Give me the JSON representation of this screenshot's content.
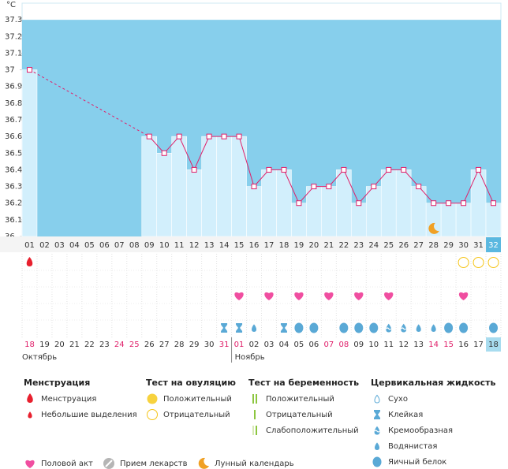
{
  "chart_data": {
    "type": "line",
    "y_unit": "°C",
    "categories": [
      "01",
      "02",
      "03",
      "04",
      "05",
      "06",
      "07",
      "08",
      "09",
      "10",
      "11",
      "12",
      "13",
      "14",
      "15",
      "16",
      "17",
      "18",
      "19",
      "20",
      "21",
      "22",
      "23",
      "24",
      "25",
      "26",
      "27",
      "28",
      "29",
      "30",
      "31",
      "32"
    ],
    "values": [
      37,
      null,
      null,
      null,
      null,
      null,
      null,
      null,
      36.6,
      36.5,
      36.6,
      36.4,
      36.6,
      36.6,
      36.6,
      36.3,
      36.4,
      36.4,
      36.2,
      36.3,
      36.3,
      36.4,
      36.2,
      36.3,
      36.4,
      36.4,
      36.3,
      36.2,
      36.2,
      36.2,
      36.4,
      36.2
    ],
    "ylim": [
      36,
      37.4
    ],
    "yticks": [
      36,
      36.1,
      36.2,
      36.3,
      36.4,
      36.5,
      36.6,
      36.7,
      36.8,
      36.9,
      37,
      37.1,
      37.2,
      37.3
    ],
    "color": "#e0206a",
    "bar_color": "#d2effc",
    "background": "#87cfec",
    "dates": [
      "18",
      "19",
      "20",
      "21",
      "22",
      "23",
      "24",
      "25",
      "26",
      "27",
      "28",
      "29",
      "30",
      "31",
      "01",
      "02",
      "03",
      "04",
      "05",
      "06",
      "07",
      "08",
      "09",
      "10",
      "11",
      "12",
      "13",
      "14",
      "15",
      "16",
      "17",
      "18"
    ],
    "weekend": [
      true,
      false,
      false,
      false,
      false,
      false,
      true,
      true,
      false,
      false,
      false,
      false,
      false,
      true,
      true,
      false,
      false,
      false,
      false,
      false,
      true,
      true,
      false,
      false,
      false,
      false,
      false,
      true,
      true,
      false,
      false,
      false
    ],
    "months": [
      "Октябрь",
      "Ноябрь"
    ]
  },
  "markers": {
    "menstruation": [
      0,
      null,
      null,
      null,
      null,
      null,
      null,
      null,
      null,
      null,
      null,
      null,
      null,
      null,
      null,
      null,
      null,
      null,
      null,
      null,
      null,
      null,
      null,
      null,
      null,
      null,
      null,
      null,
      null,
      null,
      null,
      null
    ],
    "ovulation_test": [
      null,
      null,
      null,
      null,
      null,
      null,
      null,
      null,
      null,
      null,
      null,
      null,
      null,
      null,
      null,
      null,
      null,
      null,
      null,
      null,
      null,
      null,
      null,
      null,
      null,
      null,
      null,
      null,
      null,
      1,
      1,
      1
    ],
    "intercourse": [
      null,
      null,
      null,
      null,
      null,
      null,
      null,
      null,
      null,
      null,
      null,
      null,
      null,
      null,
      0,
      null,
      0,
      null,
      0,
      null,
      0,
      null,
      0,
      null,
      0,
      null,
      null,
      null,
      null,
      0,
      null,
      null
    ],
    "cervical_fluid": [
      null,
      null,
      null,
      null,
      null,
      null,
      null,
      null,
      null,
      null,
      null,
      null,
      null,
      1,
      1,
      3,
      null,
      1,
      4,
      4,
      null,
      4,
      4,
      4,
      2,
      2,
      3,
      3,
      4,
      4,
      null,
      4
    ],
    "lunar": [
      null,
      null,
      null,
      null,
      null,
      null,
      null,
      null,
      null,
      null,
      null,
      null,
      null,
      null,
      null,
      null,
      null,
      null,
      null,
      null,
      null,
      null,
      null,
      null,
      null,
      null,
      null,
      2,
      null,
      null,
      null,
      null
    ]
  },
  "legend": {
    "sections": [
      {
        "title": "Менструация",
        "items": [
          "Менструация",
          "Небольшие выделения"
        ]
      },
      {
        "title": "Тест на овуляцию",
        "items": [
          "Положительный",
          "Отрицательный"
        ]
      },
      {
        "title": "Тест на беременность",
        "items": [
          "Положительный",
          "Отрицательный",
          "Слабоположительный"
        ]
      },
      {
        "title": "Цервикальная жидкость",
        "items": [
          "Сухо",
          "Клейкая",
          "Кремообразная",
          "Водянистая",
          "Яичный белок"
        ]
      }
    ],
    "other": [
      "Половой акт",
      "Прием лекарств",
      "Лунный календарь"
    ]
  }
}
